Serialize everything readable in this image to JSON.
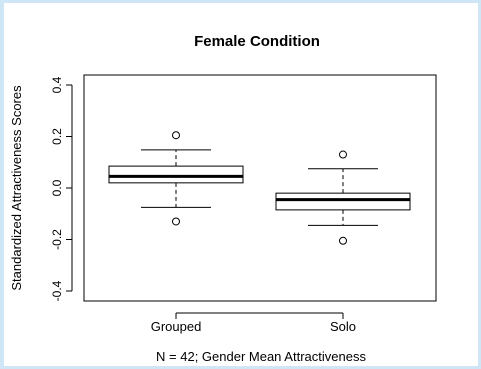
{
  "chart_data": {
    "type": "box",
    "title": "Female Condition",
    "xlabel": "N = 42; Gender Mean Attractiveness",
    "ylabel": "Standardized Attractiveness Scores",
    "ylim": [
      -0.4,
      0.4
    ],
    "yticks": [
      -0.4,
      -0.2,
      0.0,
      0.2,
      0.4
    ],
    "ytick_labels": [
      "-0.4",
      "-0.2",
      "0.0",
      "0.2",
      "0.4"
    ],
    "categories": [
      "Grouped",
      "Solo"
    ],
    "boxes": [
      {
        "category": "Grouped",
        "whisker_low": -0.075,
        "q1": 0.02,
        "median": 0.045,
        "q3": 0.085,
        "whisker_high": 0.148,
        "outliers": [
          0.205,
          -0.13
        ]
      },
      {
        "category": "Solo",
        "whisker_low": -0.145,
        "q1": -0.085,
        "median": -0.045,
        "q3": -0.02,
        "whisker_high": 0.075,
        "outliers": [
          0.13,
          -0.205
        ]
      }
    ],
    "grid": false,
    "colors": {
      "box_fill": "#ffffff",
      "stroke": "#000000",
      "background": "#ffffff",
      "page_border": "#cfe6f6"
    }
  }
}
